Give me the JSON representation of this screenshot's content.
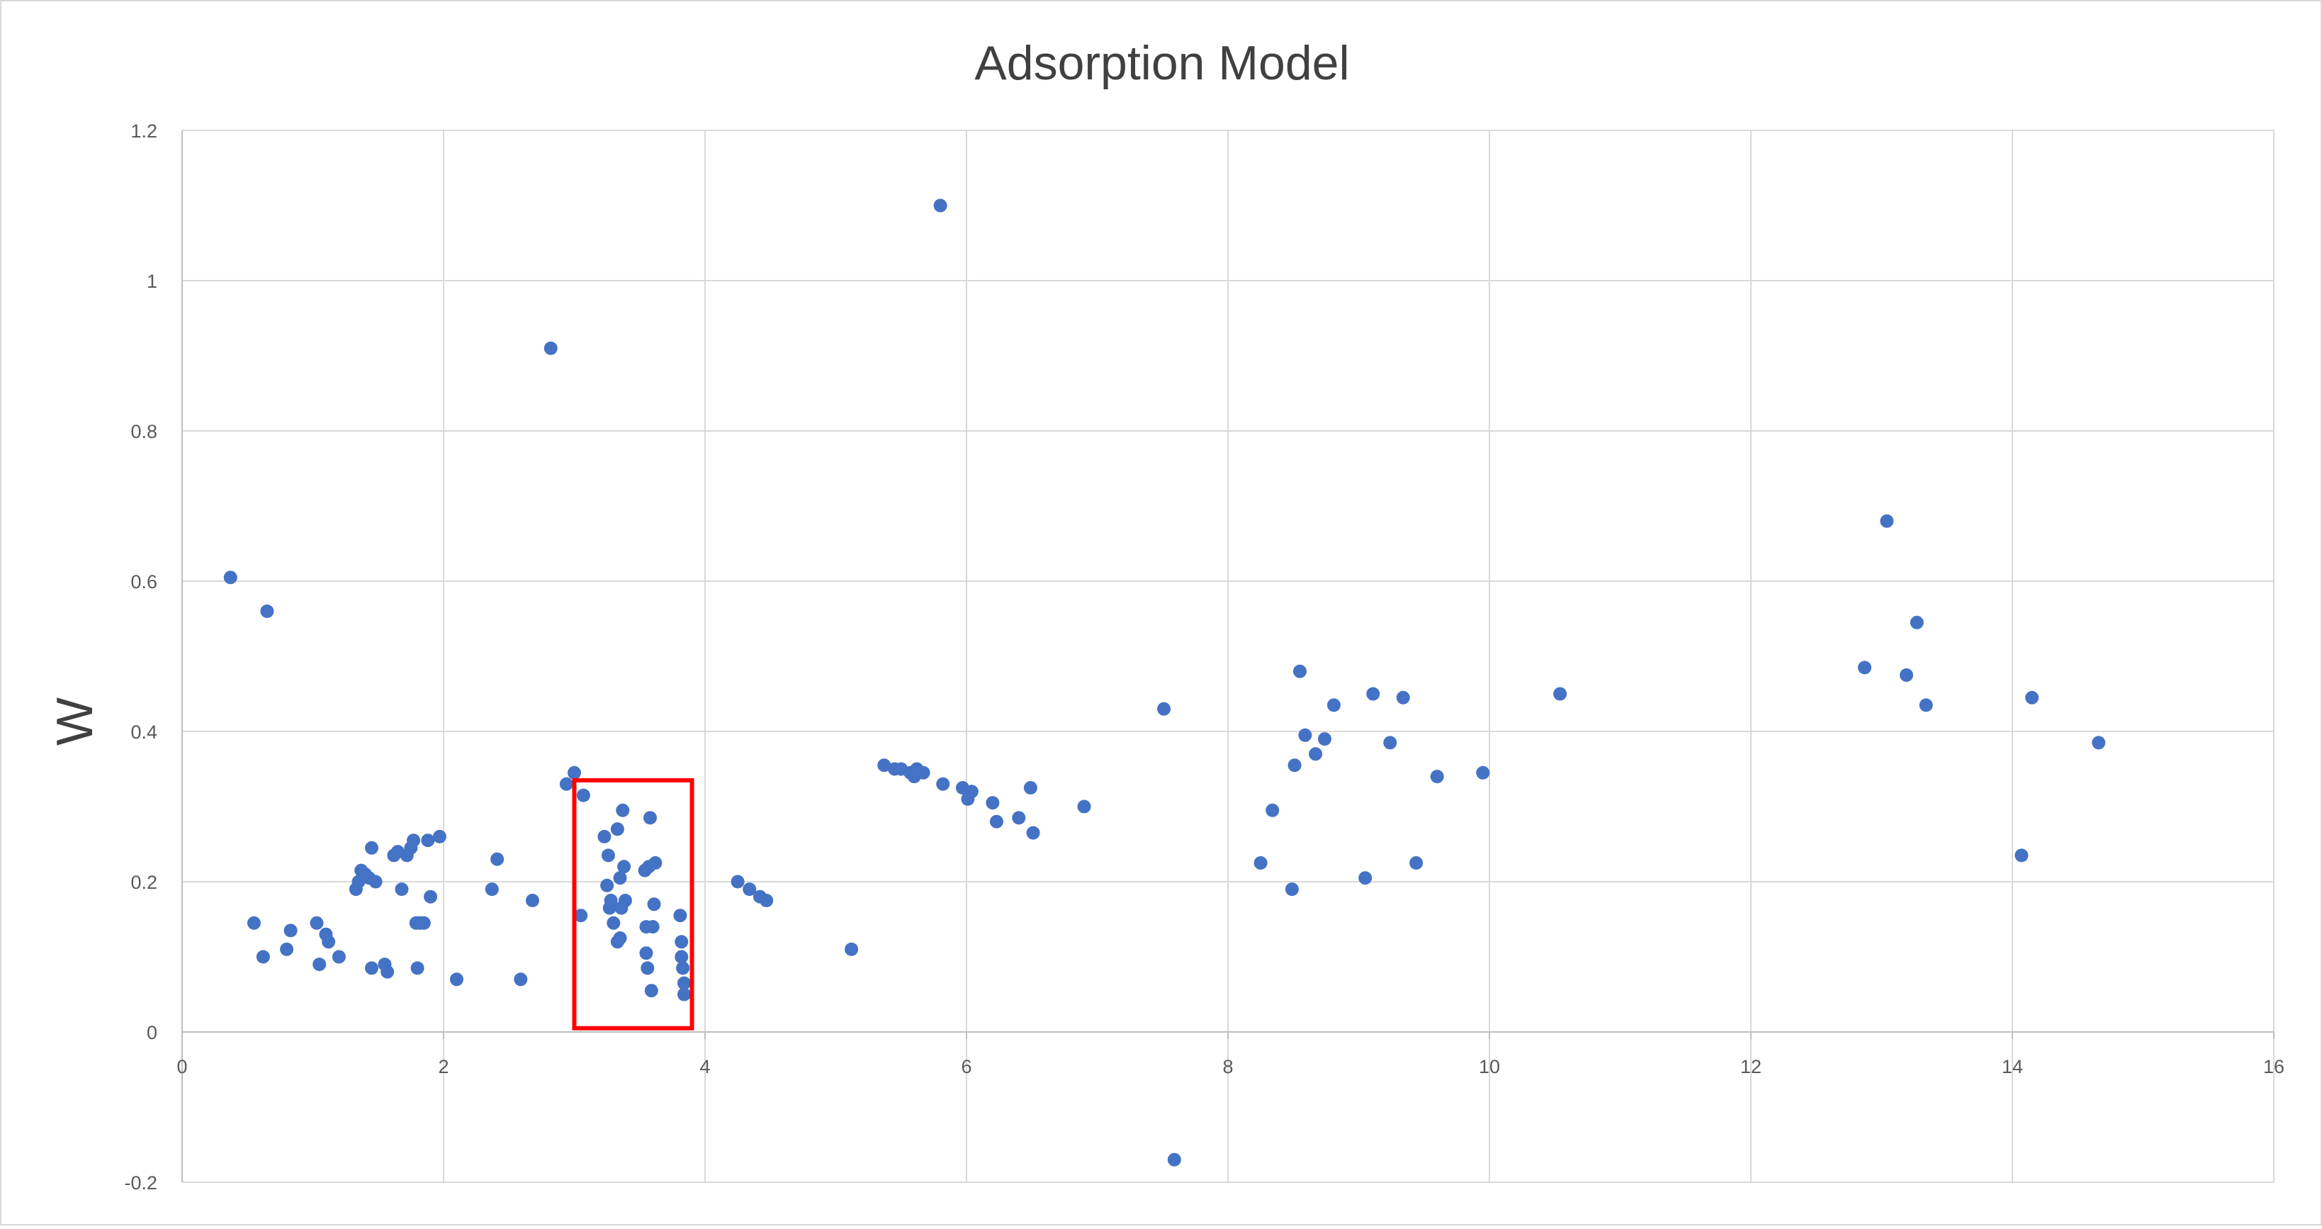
{
  "chart_data": {
    "type": "scatter",
    "title": "Adsorption Model",
    "xlabel": "",
    "ylabel": "W",
    "xlim": [
      0,
      16
    ],
    "ylim": [
      -0.2,
      1.2
    ],
    "x_ticks": [
      "0",
      "2",
      "4",
      "6",
      "8",
      "10",
      "12",
      "14",
      "16"
    ],
    "y_ticks": [
      "-0.2",
      "0",
      "0.2",
      "0.4",
      "0.6",
      "0.8",
      "1",
      "1.2"
    ],
    "grid": true,
    "legend": "none",
    "marker_color": "#4472C4",
    "highlight_color": "#FF0000",
    "highlight_region": {
      "x_range": [
        3.0,
        3.9
      ],
      "y_range": [
        0.005,
        0.335
      ]
    },
    "series": [
      {
        "points": [
          [
            0.37,
            0.605
          ],
          [
            0.65,
            0.56
          ],
          [
            0.55,
            0.145
          ],
          [
            0.62,
            0.1
          ],
          [
            0.8,
            0.11
          ],
          [
            0.83,
            0.135
          ],
          [
            1.03,
            0.145
          ],
          [
            1.05,
            0.09
          ],
          [
            1.1,
            0.13
          ],
          [
            1.12,
            0.12
          ],
          [
            1.2,
            0.1
          ],
          [
            1.33,
            0.19
          ],
          [
            1.35,
            0.2
          ],
          [
            1.37,
            0.215
          ],
          [
            1.4,
            0.21
          ],
          [
            1.43,
            0.205
          ],
          [
            1.45,
            0.245
          ],
          [
            1.48,
            0.2
          ],
          [
            1.45,
            0.085
          ],
          [
            1.55,
            0.09
          ],
          [
            1.57,
            0.08
          ],
          [
            1.62,
            0.235
          ],
          [
            1.65,
            0.24
          ],
          [
            1.68,
            0.19
          ],
          [
            1.72,
            0.235
          ],
          [
            1.75,
            0.245
          ],
          [
            1.77,
            0.255
          ],
          [
            1.79,
            0.145
          ],
          [
            1.82,
            0.145
          ],
          [
            1.8,
            0.085
          ],
          [
            1.85,
            0.145
          ],
          [
            1.88,
            0.255
          ],
          [
            1.9,
            0.18
          ],
          [
            1.97,
            0.26
          ],
          [
            2.1,
            0.07
          ],
          [
            2.37,
            0.19
          ],
          [
            2.41,
            0.23
          ],
          [
            2.59,
            0.07
          ],
          [
            2.68,
            0.175
          ],
          [
            2.82,
            0.91
          ],
          [
            2.94,
            0.33
          ],
          [
            3.0,
            0.345
          ],
          [
            3.05,
            0.155
          ],
          [
            3.07,
            0.315
          ],
          [
            3.23,
            0.26
          ],
          [
            3.25,
            0.195
          ],
          [
            3.26,
            0.235
          ],
          [
            3.27,
            0.165
          ],
          [
            3.28,
            0.175
          ],
          [
            3.3,
            0.145
          ],
          [
            3.33,
            0.27
          ],
          [
            3.33,
            0.12
          ],
          [
            3.35,
            0.125
          ],
          [
            3.35,
            0.205
          ],
          [
            3.36,
            0.165
          ],
          [
            3.37,
            0.295
          ],
          [
            3.38,
            0.22
          ],
          [
            3.39,
            0.175
          ],
          [
            3.54,
            0.215
          ],
          [
            3.55,
            0.14
          ],
          [
            3.55,
            0.105
          ],
          [
            3.56,
            0.085
          ],
          [
            3.57,
            0.22
          ],
          [
            3.58,
            0.285
          ],
          [
            3.59,
            0.055
          ],
          [
            3.6,
            0.14
          ],
          [
            3.61,
            0.17
          ],
          [
            3.62,
            0.225
          ],
          [
            3.81,
            0.155
          ],
          [
            3.82,
            0.12
          ],
          [
            3.82,
            0.1
          ],
          [
            3.83,
            0.085
          ],
          [
            3.84,
            0.065
          ],
          [
            3.84,
            0.05
          ],
          [
            4.25,
            0.2
          ],
          [
            4.34,
            0.19
          ],
          [
            4.42,
            0.18
          ],
          [
            4.47,
            0.175
          ],
          [
            5.12,
            0.11
          ],
          [
            5.37,
            0.355
          ],
          [
            5.45,
            0.35
          ],
          [
            5.5,
            0.35
          ],
          [
            5.57,
            0.345
          ],
          [
            5.6,
            0.34
          ],
          [
            5.62,
            0.35
          ],
          [
            5.67,
            0.345
          ],
          [
            5.8,
            1.1
          ],
          [
            5.82,
            0.33
          ],
          [
            5.97,
            0.325
          ],
          [
            6.01,
            0.31
          ],
          [
            6.04,
            0.32
          ],
          [
            6.2,
            0.305
          ],
          [
            6.23,
            0.28
          ],
          [
            6.4,
            0.285
          ],
          [
            6.49,
            0.325
          ],
          [
            6.51,
            0.265
          ],
          [
            6.9,
            0.3
          ],
          [
            7.51,
            0.43
          ],
          [
            7.59,
            -0.17
          ],
          [
            8.25,
            0.225
          ],
          [
            8.34,
            0.295
          ],
          [
            8.49,
            0.19
          ],
          [
            8.51,
            0.355
          ],
          [
            8.55,
            0.48
          ],
          [
            8.59,
            0.395
          ],
          [
            8.67,
            0.37
          ],
          [
            8.74,
            0.39
          ],
          [
            8.81,
            0.435
          ],
          [
            9.05,
            0.205
          ],
          [
            9.11,
            0.45
          ],
          [
            9.24,
            0.385
          ],
          [
            9.34,
            0.445
          ],
          [
            9.44,
            0.225
          ],
          [
            9.6,
            0.34
          ],
          [
            9.95,
            0.345
          ],
          [
            10.54,
            0.45
          ],
          [
            12.87,
            0.485
          ],
          [
            13.04,
            0.68
          ],
          [
            13.19,
            0.475
          ],
          [
            13.27,
            0.545
          ],
          [
            13.34,
            0.435
          ],
          [
            14.07,
            0.235
          ],
          [
            14.15,
            0.445
          ],
          [
            14.66,
            0.385
          ]
        ]
      }
    ]
  }
}
